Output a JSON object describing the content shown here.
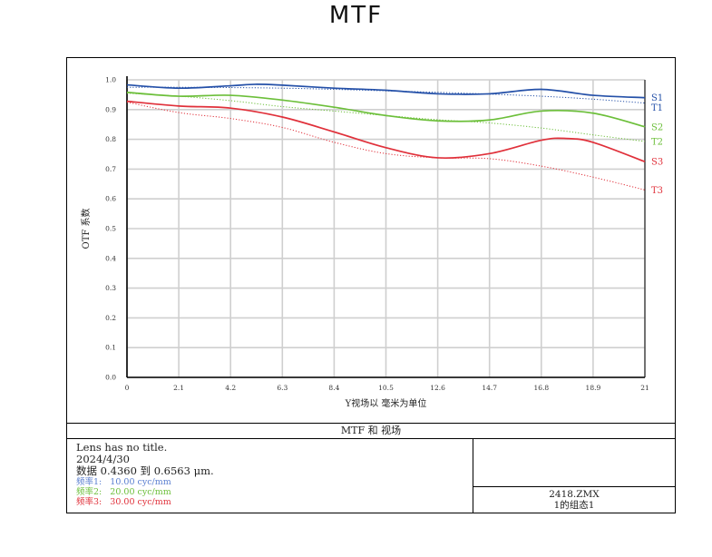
{
  "page_title": "MTF",
  "chart_data": {
    "type": "line",
    "xlabel": "Y视场以 毫米为单位",
    "ylabel": "OTF 系数",
    "xlim": [
      0,
      21
    ],
    "ylim": [
      0,
      1.0
    ],
    "x_ticks": [
      "0",
      "2.1",
      "4.2",
      "6.3",
      "8.4",
      "10.5",
      "12.6",
      "14.7",
      "16.8",
      "18.9",
      "21"
    ],
    "y_ticks": [
      "0.0",
      "0.1",
      "0.2",
      "0.3",
      "0.4",
      "0.5",
      "0.6",
      "0.7",
      "0.8",
      "0.9",
      "1.0"
    ],
    "grid": true,
    "series": [
      {
        "name": "S1",
        "color": "#2450a8",
        "style": "solid",
        "x": [
          0,
          2.1,
          4.2,
          5.2,
          6.3,
          8.4,
          10.5,
          12.6,
          14.7,
          16.8,
          18.9,
          21
        ],
        "y": [
          0.983,
          0.972,
          0.98,
          0.985,
          0.982,
          0.972,
          0.965,
          0.953,
          0.953,
          0.968,
          0.948,
          0.94
        ]
      },
      {
        "name": "T1",
        "color": "#2450a8",
        "style": "dotted",
        "x": [
          0,
          2.1,
          4.2,
          6.3,
          8.4,
          10.5,
          12.6,
          14.7,
          16.8,
          18.9,
          21
        ],
        "y": [
          0.975,
          0.975,
          0.974,
          0.972,
          0.968,
          0.963,
          0.958,
          0.952,
          0.945,
          0.935,
          0.922
        ]
      },
      {
        "name": "S2",
        "color": "#6cbf3a",
        "style": "solid",
        "x": [
          0,
          2.1,
          4.2,
          6.3,
          8.4,
          10.5,
          12.6,
          14.7,
          16.8,
          18.9,
          21
        ],
        "y": [
          0.958,
          0.945,
          0.948,
          0.932,
          0.908,
          0.88,
          0.862,
          0.865,
          0.895,
          0.888,
          0.842
        ]
      },
      {
        "name": "T2",
        "color": "#6cbf3a",
        "style": "dotted",
        "x": [
          0,
          2.1,
          4.2,
          6.3,
          8.4,
          10.5,
          12.6,
          14.7,
          16.8,
          18.9,
          21
        ],
        "y": [
          0.955,
          0.945,
          0.93,
          0.91,
          0.895,
          0.88,
          0.866,
          0.855,
          0.838,
          0.815,
          0.793
        ]
      },
      {
        "name": "S3",
        "color": "#e0303a",
        "style": "solid",
        "x": [
          0,
          2.1,
          4.2,
          6.3,
          8.4,
          10.5,
          12.6,
          14.7,
          16.8,
          17.8,
          18.9,
          21
        ],
        "y": [
          0.928,
          0.912,
          0.905,
          0.875,
          0.825,
          0.772,
          0.738,
          0.752,
          0.797,
          0.803,
          0.79,
          0.725
        ]
      },
      {
        "name": "T3",
        "color": "#e0303a",
        "style": "dotted",
        "x": [
          0,
          2.1,
          4.2,
          6.3,
          8.4,
          10.5,
          12.6,
          14.7,
          16.8,
          18.9,
          21
        ],
        "y": [
          0.925,
          0.89,
          0.87,
          0.84,
          0.79,
          0.752,
          0.738,
          0.735,
          0.71,
          0.673,
          0.63
        ]
      }
    ]
  },
  "caption": "MTF 和 视场",
  "info": {
    "line1": "Lens has no title.",
    "line2": "2024/4/30",
    "line3": "数据 0.4360 到 0.6563 μm.",
    "freq1": "频率1:   10.00 cyc/mm",
    "freq2": "频率2:   20.00 cyc/mm",
    "freq3": "频率3:   30.00 cyc/mm",
    "freq1_color": "#5a7fd0",
    "freq2_color": "#6cbf3a",
    "freq3_color": "#e0303a"
  },
  "file_info": {
    "file": "2418.ZMX",
    "config": "1的组态1"
  }
}
